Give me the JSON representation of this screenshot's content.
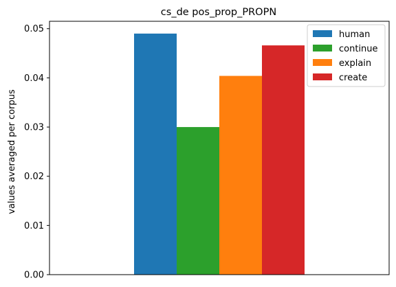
{
  "chart_data": {
    "type": "bar",
    "title": "cs_de pos_prop_PROPN",
    "xlabel": "",
    "ylabel": "values averaged per corpus",
    "categories": [
      ""
    ],
    "series": [
      {
        "name": "human",
        "values": [
          0.049
        ],
        "color": "#1f77b4"
      },
      {
        "name": "continue",
        "values": [
          0.03
        ],
        "color": "#2ca02c"
      },
      {
        "name": "explain",
        "values": [
          0.0404
        ],
        "color": "#ff7f0e"
      },
      {
        "name": "create",
        "values": [
          0.0466
        ],
        "color": "#d62728"
      }
    ],
    "ylim": [
      0,
      0.0515
    ],
    "yticks": [
      "0.00",
      "0.01",
      "0.02",
      "0.03",
      "0.04",
      "0.05"
    ],
    "grid": false,
    "legend_position": "top-right"
  }
}
